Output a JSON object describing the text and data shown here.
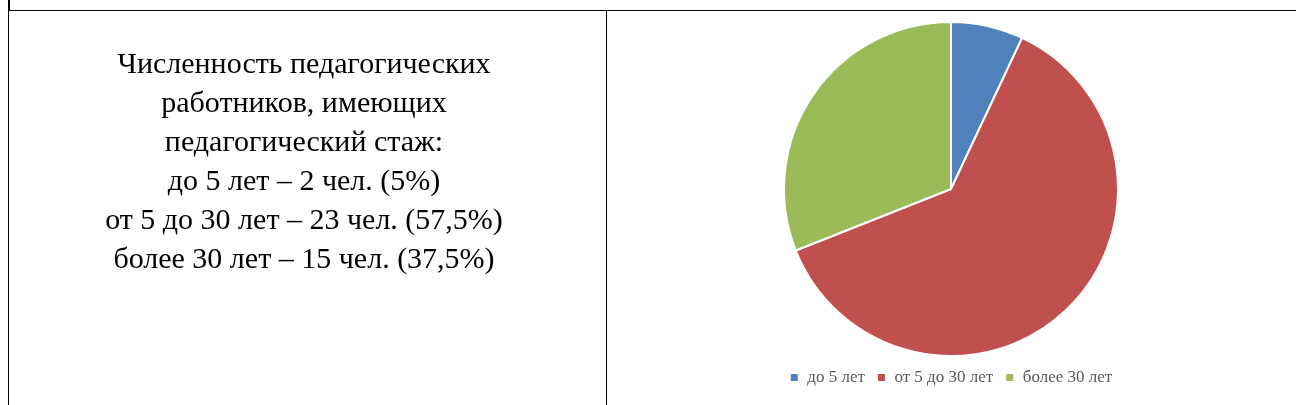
{
  "chart_data": [
    {
      "type": "other",
      "annotations": [
        "Численность педагогических",
        "работников, имеющих",
        "педагогический стаж:",
        "до 5 лет – 2 чел. (5%)",
        "от 5 до 30 лет – 23 чел. (57,5%)",
        "более 30 лет – 15 чел. (37,5%)"
      ]
    },
    {
      "type": "pie",
      "categories": [
        "до 5 лет",
        "от 5 до 30 лет",
        "более 30 лет"
      ],
      "values": [
        7,
        62,
        31
      ],
      "colors": [
        "#4f81bd",
        "#c0504d",
        "#9bbb59"
      ],
      "legend": "bottom"
    }
  ]
}
